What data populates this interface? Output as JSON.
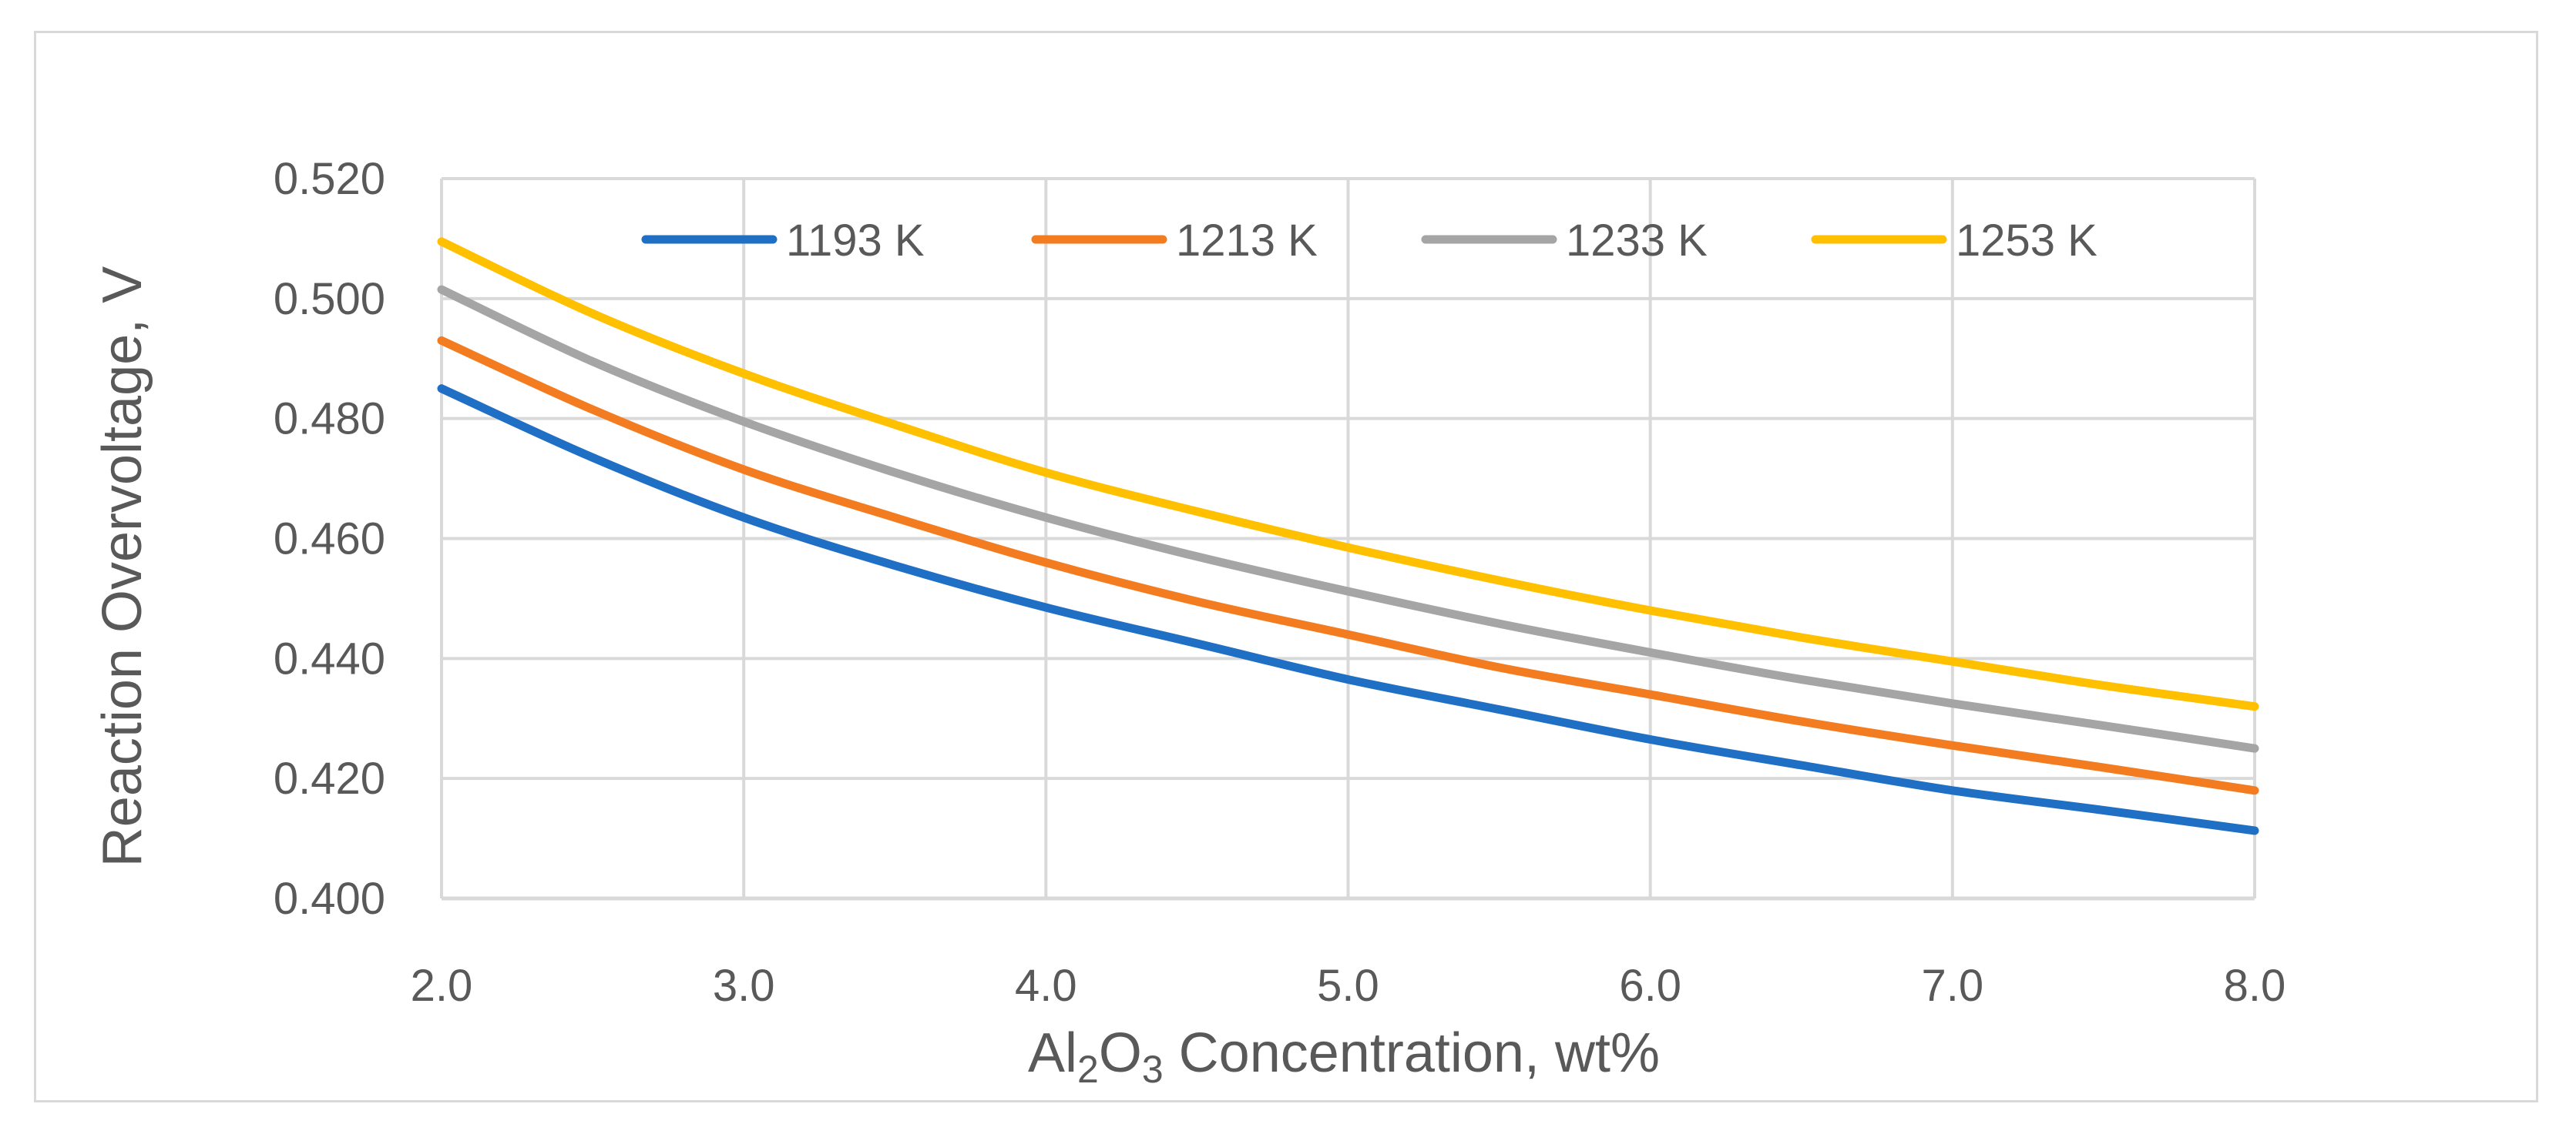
{
  "chart_data": {
    "type": "line",
    "title": "",
    "xlabel": "Al2O3 Concentration, wt%",
    "xlabel_parts": {
      "pre": "Al",
      "sub1": "2",
      "mid": "O",
      "sub2": "3",
      "post": " Concentration, wt%"
    },
    "ylabel": "Reaction Overvoltage, V",
    "xlim": [
      2.0,
      8.0
    ],
    "ylim": [
      0.4,
      0.52
    ],
    "x_ticks": [
      "2.0",
      "3.0",
      "4.0",
      "5.0",
      "6.0",
      "7.0",
      "8.0"
    ],
    "y_ticks": [
      "0.400",
      "0.420",
      "0.440",
      "0.460",
      "0.480",
      "0.500",
      "0.520"
    ],
    "grid": true,
    "legend_position": "top",
    "x": [
      2.0,
      2.5,
      3.0,
      3.5,
      4.0,
      4.5,
      5.0,
      5.5,
      6.0,
      6.5,
      7.0,
      7.5,
      8.0
    ],
    "series": [
      {
        "name": "1193 K",
        "color": "#1f6fc5",
        "values": [
          0.485,
          0.4735,
          0.4635,
          0.4555,
          0.4485,
          0.4425,
          0.4365,
          0.4315,
          0.4265,
          0.4222,
          0.418,
          0.4147,
          0.4113
        ]
      },
      {
        "name": "1213 K",
        "color": "#f47c20",
        "values": [
          0.493,
          0.4815,
          0.4715,
          0.4635,
          0.456,
          0.4495,
          0.444,
          0.4385,
          0.434,
          0.4295,
          0.4255,
          0.4218,
          0.418
        ]
      },
      {
        "name": "1233 K",
        "color": "#a5a5a5",
        "values": [
          0.5015,
          0.4895,
          0.4795,
          0.471,
          0.4635,
          0.457,
          0.4512,
          0.4458,
          0.441,
          0.4365,
          0.4325,
          0.4288,
          0.425
        ]
      },
      {
        "name": "1253 K",
        "color": "#ffc000",
        "values": [
          0.5095,
          0.4975,
          0.4875,
          0.479,
          0.471,
          0.4645,
          0.4585,
          0.453,
          0.448,
          0.4435,
          0.4395,
          0.4355,
          0.432
        ]
      }
    ]
  }
}
